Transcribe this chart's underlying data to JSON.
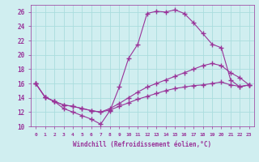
{
  "xlabel": "Windchill (Refroidissement éolien,°C)",
  "background_color": "#d0eef0",
  "line_color": "#993399",
  "grid_color": "#aadddd",
  "xlim": [
    -0.5,
    23.5
  ],
  "ylim": [
    10,
    27
  ],
  "xticks": [
    0,
    1,
    2,
    3,
    4,
    5,
    6,
    7,
    8,
    9,
    10,
    11,
    12,
    13,
    14,
    15,
    16,
    17,
    18,
    19,
    20,
    21,
    22,
    23
  ],
  "yticks": [
    10,
    12,
    14,
    16,
    18,
    20,
    22,
    24,
    26
  ],
  "curve1_x": [
    0,
    1,
    2,
    3,
    4,
    5,
    6,
    7,
    8,
    9,
    10,
    11,
    12,
    13,
    14,
    15,
    16,
    17,
    18,
    19,
    20,
    21,
    22,
    23
  ],
  "curve1_y": [
    16.0,
    14.1,
    13.5,
    12.5,
    12.0,
    11.5,
    11.0,
    10.3,
    12.2,
    15.5,
    19.5,
    21.5,
    25.8,
    26.1,
    26.0,
    26.3,
    25.8,
    24.5,
    23.0,
    21.5,
    21.0,
    16.5,
    15.5,
    15.8
  ],
  "curve2_x": [
    0,
    1,
    2,
    3,
    4,
    5,
    6,
    7,
    8,
    9,
    10,
    11,
    12,
    13,
    14,
    15,
    16,
    17,
    18,
    19,
    20,
    21,
    22,
    23
  ],
  "curve2_y": [
    16.0,
    14.1,
    13.5,
    13.0,
    12.8,
    12.5,
    12.2,
    12.0,
    12.5,
    13.2,
    14.0,
    14.8,
    15.5,
    16.0,
    16.5,
    17.0,
    17.5,
    18.0,
    18.5,
    18.8,
    18.5,
    17.5,
    16.8,
    15.8
  ],
  "curve3_x": [
    0,
    1,
    2,
    3,
    4,
    5,
    6,
    7,
    8,
    9,
    10,
    11,
    12,
    13,
    14,
    15,
    16,
    17,
    18,
    19,
    20,
    21,
    22,
    23
  ],
  "curve3_y": [
    16.0,
    14.1,
    13.5,
    13.0,
    12.8,
    12.5,
    12.2,
    12.0,
    12.3,
    12.8,
    13.3,
    13.8,
    14.2,
    14.6,
    15.0,
    15.3,
    15.5,
    15.7,
    15.8,
    16.0,
    16.2,
    15.8,
    15.6,
    15.8
  ]
}
